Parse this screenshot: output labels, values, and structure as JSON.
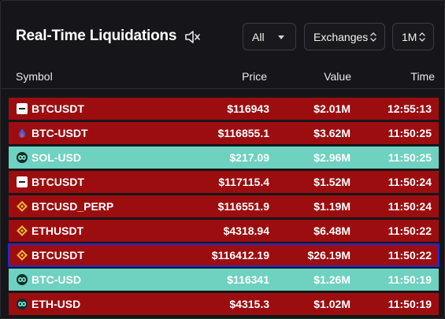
{
  "header": {
    "title": "Real-Time Liquidations",
    "mute_icon": "speaker-muted-icon",
    "filter_side": {
      "value": "All"
    },
    "filter_exchange": {
      "value": "Exchanges"
    },
    "filter_timeframe": {
      "value": "1M"
    }
  },
  "table": {
    "columns": {
      "symbol": "Symbol",
      "price": "Price",
      "value": "Value",
      "time": "Time"
    },
    "rows": [
      {
        "symbol": "BTCUSDT",
        "price": "$116943",
        "value": "$2.01M",
        "time": "12:55:13",
        "side": "long",
        "exchange_icon": "okx-icon"
      },
      {
        "symbol": "BTC-USDT",
        "price": "$116855.1",
        "value": "$3.62M",
        "time": "11:50:25",
        "side": "long",
        "exchange_icon": "bitmex-icon"
      },
      {
        "symbol": "SOL-USD",
        "price": "$217.09",
        "value": "$2.96M",
        "time": "11:50:25",
        "side": "short",
        "exchange_icon": "hyperliquid-icon"
      },
      {
        "symbol": "BTCUSDT",
        "price": "$117115.4",
        "value": "$1.52M",
        "time": "11:50:24",
        "side": "long",
        "exchange_icon": "okx-icon"
      },
      {
        "symbol": "BTCUSD_PERP",
        "price": "$116551.9",
        "value": "$1.19M",
        "time": "11:50:24",
        "side": "long",
        "exchange_icon": "binance-icon"
      },
      {
        "symbol": "ETHUSDT",
        "price": "$4318.94",
        "value": "$6.48M",
        "time": "11:50:22",
        "side": "long",
        "exchange_icon": "binance-icon"
      },
      {
        "symbol": "BTCUSDT",
        "price": "$116412.19",
        "value": "$26.19M",
        "time": "11:50:22",
        "side": "long",
        "exchange_icon": "binance-icon",
        "highlighted": true
      },
      {
        "symbol": "BTC-USD",
        "price": "$116341",
        "value": "$1.26M",
        "time": "11:50:19",
        "side": "short",
        "exchange_icon": "hyperliquid-icon"
      },
      {
        "symbol": "ETH-USD",
        "price": "$4315.3",
        "value": "$1.02M",
        "time": "11:50:19",
        "side": "long",
        "exchange_icon": "hyperliquid-icon"
      }
    ]
  },
  "colors": {
    "long_row": "#9c0d10",
    "short_row": "#6fd1c0",
    "highlight_border": "#1d2ad6",
    "binance": "#f3ba2f"
  }
}
